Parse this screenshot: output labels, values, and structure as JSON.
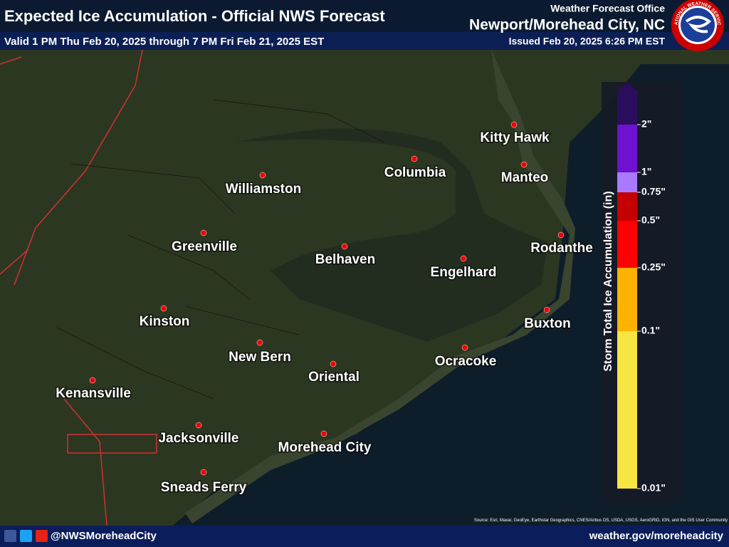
{
  "header": {
    "title": "Expected Ice Accumulation - Official NWS Forecast",
    "valid": "Valid 1 PM Thu Feb 20, 2025 through 7 PM Fri Feb 21, 2025 EST",
    "office_label": "Weather Forecast Office",
    "office": "Newport/Morehead City, NC",
    "issued": "Issued Feb 20, 2025 6:26 PM EST",
    "logo_text": "NATIONAL WEATHER SERVICE"
  },
  "cities": [
    "Kitty Hawk",
    "Columbia",
    "Manteo",
    "Williamston",
    "Greenville",
    "Rodanthe",
    "Belhaven",
    "Engelhard",
    "Kinston",
    "Buxton",
    "New Bern",
    "Oriental",
    "Ocracoke",
    "Kenansville",
    "Jacksonville",
    "Morehead City",
    "Sneads Ferry"
  ],
  "legend": {
    "title": "Storm Total Ice Accumulation (in)",
    "labels": [
      "0.01\"",
      "0.1\"",
      "0.25\"",
      "0.5\"",
      "0.75\"",
      "1\"",
      "2\""
    ]
  },
  "attribution": "Source: Esri, Maxar, GeoEye, Earthstar Geographics, CNES/Airbus DS, USDA, USGS, AeroGRID, IGN, and the GIS User Community",
  "footer": {
    "social": "@NWSMoreheadCity",
    "url": "weather.gov/moreheadcity"
  }
}
